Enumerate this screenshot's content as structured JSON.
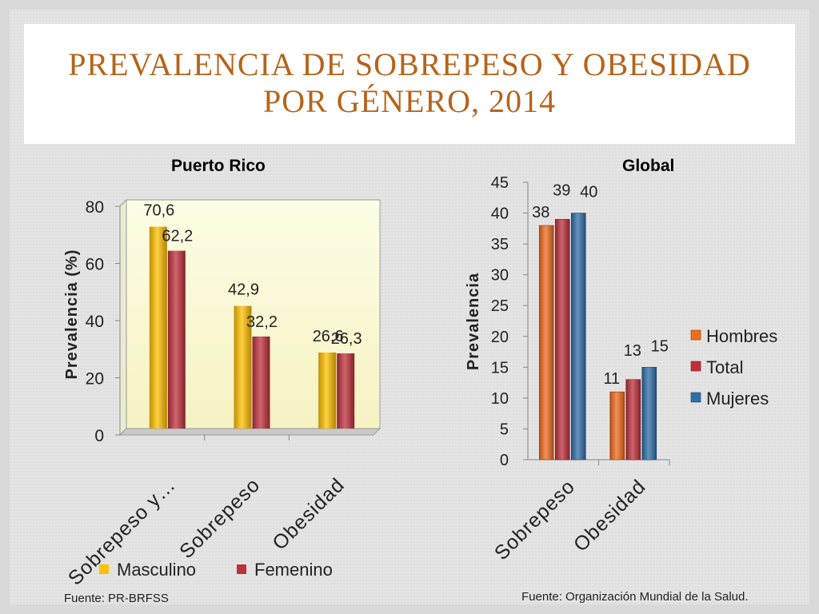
{
  "slide": {
    "title_line1": "PREVALENCIA DE SOBREPESO Y OBESIDAD",
    "title_line2": "POR GÉNERO, 2014"
  },
  "chart_data": [
    {
      "type": "bar",
      "title": "Puerto Rico",
      "ylabel": "Prevalencia (%)",
      "xlabel": "",
      "categories": [
        "Sobrepeso y…",
        "Sobrepeso",
        "Obesidad"
      ],
      "series": [
        {
          "name": "Masculino",
          "values": [
            70.6,
            42.9,
            26.6
          ],
          "labels": [
            "70,6",
            "42,9",
            "26,6"
          ]
        },
        {
          "name": "Femenino",
          "values": [
            62.2,
            32.2,
            26.3
          ],
          "labels": [
            "62,2",
            "32,2",
            "26,3"
          ]
        }
      ],
      "ylim": [
        0,
        80
      ],
      "yticks": [
        0,
        20,
        40,
        60,
        80
      ],
      "legend": "bottom",
      "grid": false,
      "colors": [
        "#ffc000",
        "#c0303c"
      ],
      "source": "Fuente: PR-BRFSS"
    },
    {
      "type": "bar",
      "title": "Global",
      "ylabel": "Prevalencia",
      "xlabel": "",
      "categories": [
        "Sobrepeso",
        "Obesidad"
      ],
      "series": [
        {
          "name": "Hombres",
          "values": [
            38,
            11
          ],
          "labels": [
            "38",
            "11"
          ]
        },
        {
          "name": "Total",
          "values": [
            39,
            13
          ],
          "labels": [
            "39",
            "13"
          ]
        },
        {
          "name": "Mujeres",
          "values": [
            40,
            15
          ],
          "labels": [
            "40",
            "15"
          ]
        }
      ],
      "ylim": [
        0,
        45
      ],
      "yticks": [
        0,
        5,
        10,
        15,
        20,
        25,
        30,
        35,
        40,
        45
      ],
      "legend": "right",
      "grid": false,
      "colors": [
        "#f26b1d",
        "#c0303c",
        "#2f6fa8"
      ],
      "source": "Fuente: Organización Mundial de la Salud."
    }
  ]
}
